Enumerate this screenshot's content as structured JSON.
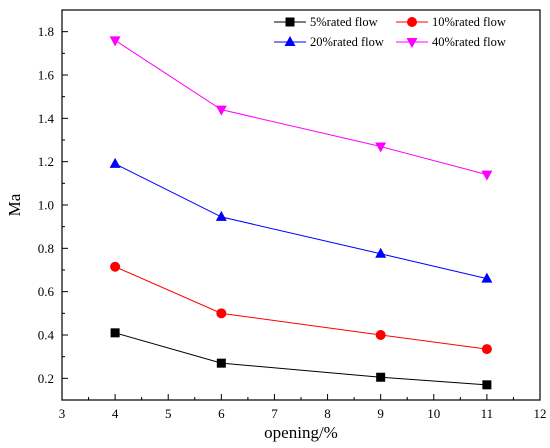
{
  "chart_data": {
    "type": "line",
    "title": "",
    "xlabel": "opening/%",
    "ylabel": "Ma",
    "xlim": [
      3,
      12
    ],
    "ylim": [
      0.1,
      1.9
    ],
    "xticks": [
      "3",
      "4",
      "5",
      "6",
      "7",
      "8",
      "9",
      "10",
      "11",
      "12"
    ],
    "yticks": [
      "0.2",
      "0.4",
      "0.6",
      "0.8",
      "1.0",
      "1.2",
      "1.4",
      "1.6",
      "1.8"
    ],
    "x": [
      4,
      6,
      9,
      11
    ],
    "grid": false,
    "legend_position": "top-right",
    "series": [
      {
        "name": "5%rated flow",
        "values": [
          0.41,
          0.27,
          0.205,
          0.17
        ],
        "color": "#000000",
        "line_color": "#000000",
        "marker": "square"
      },
      {
        "name": "10%rated flow",
        "values": [
          0.715,
          0.5,
          0.4,
          0.335
        ],
        "color": "#ff0000",
        "line_color": "#ff0000",
        "marker": "circle"
      },
      {
        "name": "20%rated flow",
        "values": [
          1.19,
          0.945,
          0.775,
          0.66
        ],
        "color": "#0000ff",
        "line_color": "#0000ff",
        "marker": "triangle-up"
      },
      {
        "name": "40%rated flow",
        "values": [
          1.76,
          1.44,
          1.27,
          1.14
        ],
        "color": "#ff00ff",
        "line_color": "#ff00ff",
        "marker": "triangle-down"
      }
    ]
  }
}
